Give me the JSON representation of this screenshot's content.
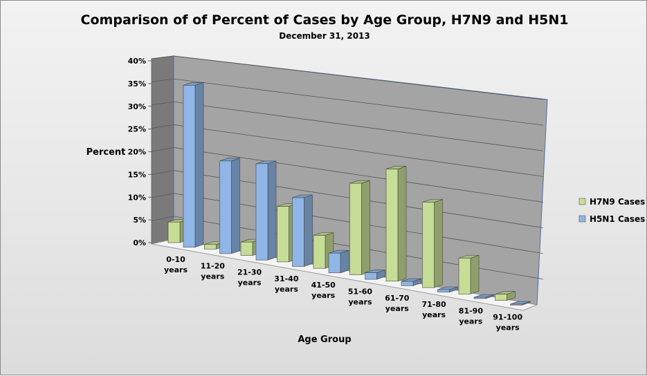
{
  "chart_data": {
    "type": "bar",
    "title": "Comparison of of Percent of Cases by Age Group, H7N9 and H5N1",
    "subtitle": "December 31, 2013",
    "xlabel": "Age Group",
    "ylabel": "Percent",
    "ylim": [
      0,
      40
    ],
    "yticks": [
      "0%",
      "5%",
      "10%",
      "15%",
      "20%",
      "25%",
      "30%",
      "35%",
      "40%"
    ],
    "categories": [
      [
        "0-10",
        "years"
      ],
      [
        "11-20",
        "years"
      ],
      [
        "21-30",
        "years"
      ],
      [
        "31-40",
        "years"
      ],
      [
        "41-50",
        "years"
      ],
      [
        "51-60",
        "years"
      ],
      [
        "61-70",
        "years"
      ],
      [
        "71-80",
        "years"
      ],
      [
        "81-90",
        "years"
      ],
      [
        "91-100",
        "years"
      ]
    ],
    "series": [
      {
        "name": "H7N9 Cases",
        "color": "#c6dd95",
        "values": [
          4.5,
          1,
          3,
          12.5,
          7.5,
          21,
          26,
          20,
          8.5,
          1.5
        ]
      },
      {
        "name": "H5N1 Cases",
        "color": "#8fb6e6",
        "values": [
          35.5,
          20.5,
          21.5,
          15.5,
          4.5,
          1.5,
          1,
          0.6,
          0.3,
          0.2
        ]
      }
    ],
    "grid": true,
    "legend": "right"
  }
}
